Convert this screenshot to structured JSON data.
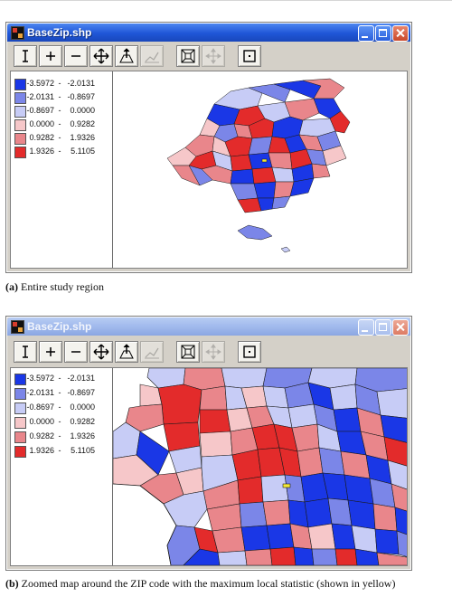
{
  "windows": [
    {
      "title": "BaseZip.shp",
      "legend": [
        {
          "lo": "-3.5972",
          "hi": "-2.0131",
          "color": "#1a37e6"
        },
        {
          "lo": "-2.0131",
          "hi": "-0.8697",
          "color": "#7b86e8"
        },
        {
          "lo": "-0.8697",
          "hi": "0.0000",
          "color": "#c7ccf6"
        },
        {
          "lo": "0.0000",
          "hi": "0.9282",
          "color": "#f6c7c9"
        },
        {
          "lo": "0.9282",
          "hi": "1.9326",
          "color": "#e9868b"
        },
        {
          "lo": "1.9326",
          "hi": "5.1105",
          "color": "#e32b2b"
        }
      ]
    },
    {
      "title": "BaseZip.shp",
      "legend": [
        {
          "lo": "-3.5972",
          "hi": "-2.0131",
          "color": "#1a37e6"
        },
        {
          "lo": "-2.0131",
          "hi": "-0.8697",
          "color": "#7b86e8"
        },
        {
          "lo": "-0.8697",
          "hi": "0.0000",
          "color": "#c7ccf6"
        },
        {
          "lo": "0.0000",
          "hi": "0.9282",
          "color": "#f6c7c9"
        },
        {
          "lo": "0.9282",
          "hi": "1.9326",
          "color": "#e9868b"
        },
        {
          "lo": "1.9326",
          "hi": "5.1105",
          "color": "#e32b2b"
        }
      ]
    }
  ],
  "legend_dash": "-",
  "toolbar_icons": [
    "info-icon",
    "zoom-in-icon",
    "zoom-out-icon",
    "pan-icon",
    "select-point-icon",
    "chart-icon",
    "zoom-extent-icon",
    "center-icon",
    "select-rect-icon"
  ],
  "highlight_color": "#f3e83a",
  "captions": {
    "a": {
      "label": "(a)",
      "text": " Entire study region"
    },
    "b": {
      "label": "(b)",
      "text": " Zoomed map around the ZIP code with the maximum local statistic (shown in yellow)"
    }
  }
}
